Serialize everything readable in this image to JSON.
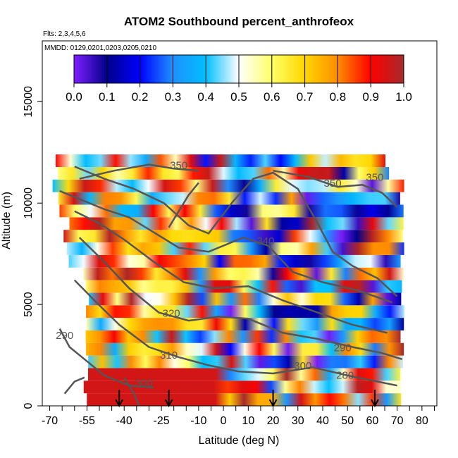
{
  "chart_data": {
    "type": "heatmap",
    "title": "ATOM2 Southbound percent_anthrofeox",
    "subtitle_flights": "Flts: 2,3,4,5,6",
    "subtitle_dates": "MMDD: 0129,0201,0203,0205,0210",
    "xlabel": "Latitude (deg N)",
    "ylabel": "Altitude (m)",
    "xlim": [
      -73,
      86
    ],
    "ylim": [
      0,
      18000
    ],
    "x_ticks": [
      -70,
      -55,
      -40,
      -25,
      -10,
      0,
      10,
      20,
      30,
      40,
      50,
      60,
      70,
      80
    ],
    "x_tick_labels": [
      "-70",
      "-55",
      "-40",
      "-25",
      "-10",
      "0",
      "10",
      "20",
      "30",
      "40",
      "50",
      "60",
      "70",
      "80"
    ],
    "x_minor_ticks": [
      -65,
      -60,
      -50,
      -45,
      -35,
      -30,
      -20,
      -15,
      -5,
      5,
      15,
      25,
      35,
      45,
      55,
      65,
      75,
      85
    ],
    "y_ticks": [
      0,
      5000,
      10000,
      15000
    ],
    "y_tick_labels": [
      "0",
      "5000",
      "10000",
      "15000"
    ],
    "colorbar": {
      "min": 0.0,
      "max": 1.0,
      "tick_values": [
        0.0,
        0.1,
        0.2,
        0.3,
        0.4,
        0.5,
        0.6,
        0.7,
        0.8,
        0.9,
        1.0
      ],
      "tick_labels": [
        "0.0",
        "0.1",
        "0.2",
        "0.3",
        "0.4",
        "0.5",
        "0.6",
        "0.7",
        "0.8",
        "0.9",
        "1.0"
      ],
      "colors": [
        "#7f1fff",
        "#00008b",
        "#0000ff",
        "#1e90ff",
        "#00bfff",
        "#ffffff",
        "#ffff66",
        "#ffd700",
        "#ff8c00",
        "#ff0000",
        "#a52a2a"
      ]
    },
    "profile_markers_lat": [
      -42,
      -22,
      20,
      61
    ],
    "contour_labels": [
      {
        "text": "350",
        "lat": -18,
        "alt": 11700
      },
      {
        "text": "350",
        "lat": 44,
        "alt": 10800
      },
      {
        "text": "350",
        "lat": 61,
        "alt": 11100
      },
      {
        "text": "340",
        "lat": 17,
        "alt": 7950
      },
      {
        "text": "320",
        "lat": -21,
        "alt": 4400
      },
      {
        "text": "310",
        "lat": -22,
        "alt": 2330
      },
      {
        "text": "300",
        "lat": -32,
        "alt": 960
      },
      {
        "text": "300",
        "lat": 32,
        "alt": 1800
      },
      {
        "text": "290",
        "lat": -64,
        "alt": 3300
      },
      {
        "text": "290",
        "lat": 48,
        "alt": 2700
      },
      {
        "text": "280",
        "lat": 49,
        "alt": 1340
      }
    ]
  }
}
